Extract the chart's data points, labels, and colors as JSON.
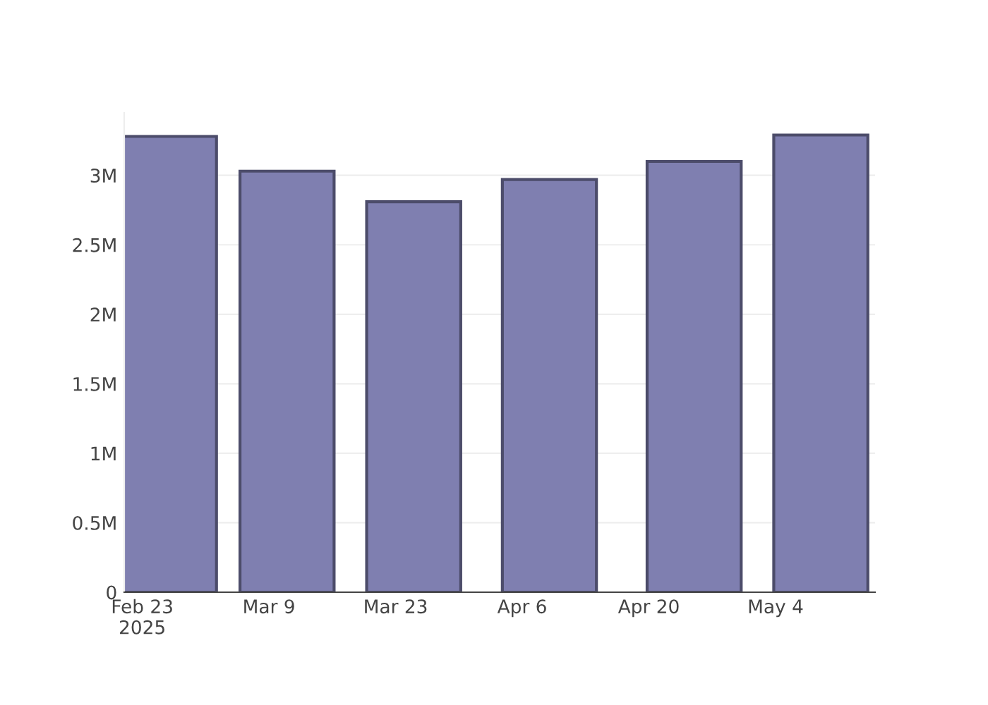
{
  "chart_data": {
    "type": "bar",
    "x": [
      "2025-02-26",
      "2025-03-11",
      "2025-03-25",
      "2025-04-09",
      "2025-04-25",
      "2025-05-09"
    ],
    "series": [
      {
        "color": "#7f7fb0",
        "values": [
          3280000,
          3030000,
          2810000,
          2970000,
          3100000,
          3290000
        ]
      }
    ],
    "xlim": [
      "2025-02-21",
      "2025-05-15"
    ],
    "xticks": [
      {
        "value": "2025-02-23",
        "label": "Feb 23\n2025"
      },
      {
        "value": "2025-03-09",
        "label": "Mar 9"
      },
      {
        "value": "2025-03-23",
        "label": "Mar 23"
      },
      {
        "value": "2025-04-06",
        "label": "Apr 6"
      },
      {
        "value": "2025-04-20",
        "label": "Apr 20"
      },
      {
        "value": "2025-05-04",
        "label": "May 4"
      }
    ],
    "ylim": [
      0,
      3450000
    ],
    "yticks": [
      0,
      {
        "value": 500000,
        "label": "0.5M"
      },
      {
        "value": 1000000,
        "label": "1M"
      },
      {
        "value": 1500000,
        "label": "1.5M"
      },
      {
        "value": 2000000,
        "label": "2M"
      },
      {
        "value": 2500000,
        "label": "2.5M"
      },
      {
        "value": 3000000,
        "label": "3M"
      }
    ],
    "grid": "y"
  }
}
